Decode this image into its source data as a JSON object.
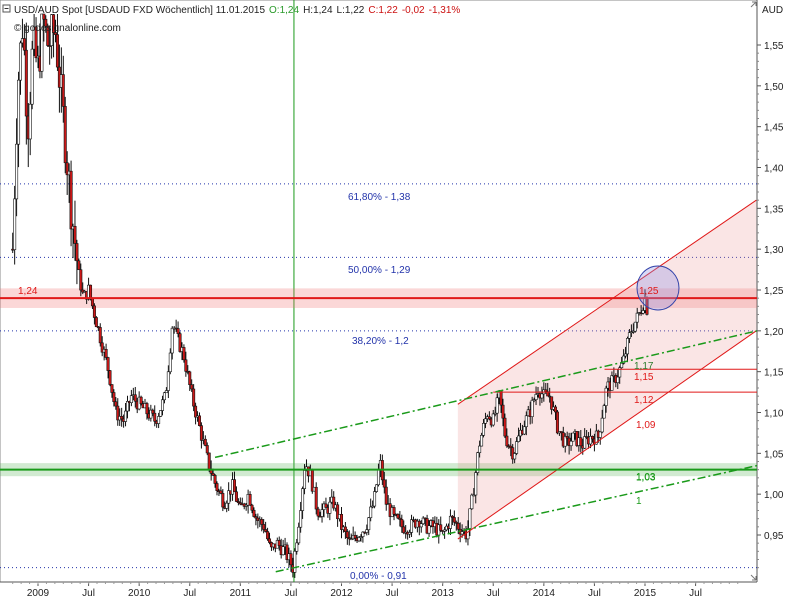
{
  "header": {
    "symbol": "USD/AUD Spot [USDAUD FXD  Wöchentlich] 11.01.2015",
    "open": "O:1,24",
    "high": "H:1,24",
    "low": "L:1,22",
    "close": "C:1,22",
    "change": "-0,02",
    "change_pct": "-1,31%",
    "source": "© godesignalonline.com",
    "currency": "AUD"
  },
  "colors": {
    "up": "#2a9a2a",
    "down": "#cc1111",
    "fib": "#2233aa",
    "resistance": "#e01818",
    "support": "#1a9a1a",
    "candle_up": "#ffffff",
    "candle_down": "#cc1818"
  },
  "chart_data": {
    "type": "candlestick",
    "title": "USD/AUD Spot [USDAUD FXD  Wöchentlich] 11.01.2015",
    "ylabel": "AUD",
    "ylim": [
      0.905,
      1.61
    ],
    "y_ticks": [
      "1,55",
      "1,50",
      "1,45",
      "1,40",
      "1,35",
      "1,30",
      "1,25",
      "1,20",
      "1,15",
      "1,10",
      "1,05",
      "1,00",
      "0,95"
    ],
    "y_tick_values": [
      1.55,
      1.5,
      1.45,
      1.4,
      1.35,
      1.3,
      1.25,
      1.2,
      1.15,
      1.1,
      1.05,
      1.0,
      0.95
    ],
    "x_ticks": [
      {
        "label": "2009",
        "t": 2009.0
      },
      {
        "label": "Jul",
        "t": 2009.5
      },
      {
        "label": "2010",
        "t": 2010.0
      },
      {
        "label": "Jul",
        "t": 2010.5
      },
      {
        "label": "2011",
        "t": 2011.0
      },
      {
        "label": "Jul",
        "t": 2011.5
      },
      {
        "label": "2012",
        "t": 2012.0
      },
      {
        "label": "Jul",
        "t": 2012.5
      },
      {
        "label": "2013",
        "t": 2013.0
      },
      {
        "label": "Jul",
        "t": 2013.5
      },
      {
        "label": "2014",
        "t": 2014.0
      },
      {
        "label": "Jul",
        "t": 2014.5
      },
      {
        "label": "2015",
        "t": 2015.0
      },
      {
        "label": "Jul",
        "t": 2015.5
      }
    ],
    "price_path": [
      [
        2008.75,
        1.3
      ],
      [
        2008.8,
        1.5
      ],
      [
        2008.85,
        1.58
      ],
      [
        2008.9,
        1.45
      ],
      [
        2008.95,
        1.55
      ],
      [
        2009.0,
        1.52
      ],
      [
        2009.05,
        1.58
      ],
      [
        2009.1,
        1.55
      ],
      [
        2009.17,
        1.57
      ],
      [
        2009.22,
        1.5
      ],
      [
        2009.28,
        1.42
      ],
      [
        2009.33,
        1.35
      ],
      [
        2009.4,
        1.27
      ],
      [
        2009.45,
        1.24
      ],
      [
        2009.5,
        1.25
      ],
      [
        2009.56,
        1.22
      ],
      [
        2009.62,
        1.19
      ],
      [
        2009.7,
        1.15
      ],
      [
        2009.77,
        1.1
      ],
      [
        2009.85,
        1.09
      ],
      [
        2009.92,
        1.12
      ],
      [
        2010.0,
        1.11
      ],
      [
        2010.08,
        1.1
      ],
      [
        2010.16,
        1.09
      ],
      [
        2010.26,
        1.12
      ],
      [
        2010.33,
        1.21
      ],
      [
        2010.38,
        1.19
      ],
      [
        2010.44,
        1.17
      ],
      [
        2010.52,
        1.12
      ],
      [
        2010.6,
        1.08
      ],
      [
        2010.68,
        1.04
      ],
      [
        2010.76,
        1.01
      ],
      [
        2010.84,
        0.99
      ],
      [
        2010.92,
        1.01
      ],
      [
        2011.0,
        0.98
      ],
      [
        2011.08,
        1.0
      ],
      [
        2011.16,
        0.97
      ],
      [
        2011.24,
        0.96
      ],
      [
        2011.3,
        0.93
      ],
      [
        2011.36,
        0.94
      ],
      [
        2011.44,
        0.93
      ],
      [
        2011.52,
        0.91
      ],
      [
        2011.58,
        0.97
      ],
      [
        2011.64,
        1.04
      ],
      [
        2011.7,
        1.02
      ],
      [
        2011.76,
        0.98
      ],
      [
        2011.84,
        0.98
      ],
      [
        2011.92,
        0.99
      ],
      [
        2012.0,
        0.96
      ],
      [
        2012.08,
        0.94
      ],
      [
        2012.16,
        0.95
      ],
      [
        2012.24,
        0.96
      ],
      [
        2012.32,
        0.99
      ],
      [
        2012.38,
        1.04
      ],
      [
        2012.44,
        0.99
      ],
      [
        2012.52,
        0.97
      ],
      [
        2012.6,
        0.96
      ],
      [
        2012.68,
        0.96
      ],
      [
        2012.76,
        0.97
      ],
      [
        2012.84,
        0.96
      ],
      [
        2012.92,
        0.96
      ],
      [
        2013.0,
        0.95
      ],
      [
        2013.08,
        0.97
      ],
      [
        2013.16,
        0.96
      ],
      [
        2013.24,
        0.95
      ],
      [
        2013.3,
        1.0
      ],
      [
        2013.36,
        1.06
      ],
      [
        2013.44,
        1.1
      ],
      [
        2013.5,
        1.09
      ],
      [
        2013.56,
        1.12
      ],
      [
        2013.62,
        1.07
      ],
      [
        2013.7,
        1.05
      ],
      [
        2013.78,
        1.08
      ],
      [
        2013.86,
        1.1
      ],
      [
        2013.94,
        1.13
      ],
      [
        2014.0,
        1.12
      ],
      [
        2014.06,
        1.12
      ],
      [
        2014.14,
        1.08
      ],
      [
        2014.22,
        1.06
      ],
      [
        2014.3,
        1.07
      ],
      [
        2014.38,
        1.06
      ],
      [
        2014.46,
        1.07
      ],
      [
        2014.54,
        1.07
      ],
      [
        2014.62,
        1.13
      ],
      [
        2014.7,
        1.14
      ],
      [
        2014.78,
        1.16
      ],
      [
        2014.86,
        1.2
      ],
      [
        2014.94,
        1.22
      ],
      [
        2015.0,
        1.24
      ],
      [
        2015.03,
        1.22
      ]
    ],
    "annotations": [
      {
        "text": "61,80% - 1,38",
        "level": 1.38,
        "kind": "fib"
      },
      {
        "text": "50,00% - 1,29",
        "level": 1.29,
        "kind": "fib"
      },
      {
        "text": "38,20% - 1,2",
        "level": 1.2,
        "kind": "fib"
      },
      {
        "text": "0,00% - 0,91",
        "level": 0.91,
        "kind": "fib"
      },
      {
        "text": "1,24",
        "level": 1.24,
        "kind": "resistance"
      },
      {
        "text": "1,03",
        "level": 1.03,
        "kind": "support"
      },
      {
        "text": "1,25",
        "level": 1.25,
        "kind": "target"
      },
      {
        "text": "1,17",
        "level": 1.17,
        "kind": "channel"
      },
      {
        "text": "1,15",
        "level": 1.15,
        "kind": "channel"
      },
      {
        "text": "1,12",
        "level": 1.12,
        "kind": "channel"
      },
      {
        "text": "1,09",
        "level": 1.09,
        "kind": "channel"
      },
      {
        "text": "1,03",
        "level": 1.03,
        "kind": "channel"
      },
      {
        "text": "1",
        "level": 1.0,
        "kind": "channel"
      }
    ]
  }
}
